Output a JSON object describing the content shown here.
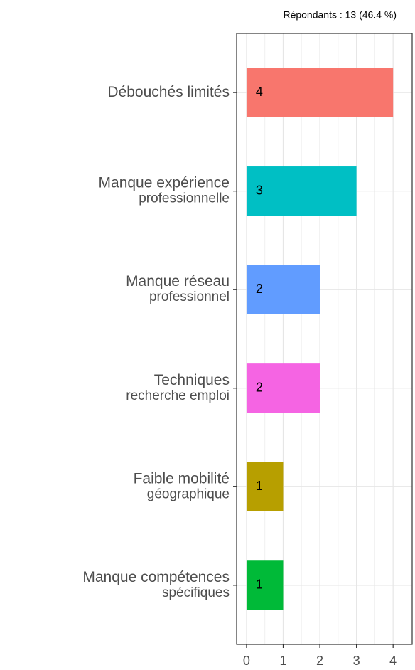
{
  "chart_data": {
    "type": "bar",
    "orientation": "horizontal",
    "subtitle": "Répondants : 13 (46.4 %)",
    "categories": [
      [
        "Débouchés limités"
      ],
      [
        "Manque expérience",
        "professionnelle"
      ],
      [
        "Manque réseau",
        "professionnel"
      ],
      [
        "Techniques",
        "recherche emploi"
      ],
      [
        "Faible mobilité",
        "géographique"
      ],
      [
        "Manque compétences",
        "spécifiques"
      ]
    ],
    "values": [
      4,
      3,
      2,
      2,
      1,
      1
    ],
    "colors": [
      "#F8766D",
      "#00BFC4",
      "#619CFF",
      "#F564E3",
      "#B79F00",
      "#00BA38"
    ],
    "xlim": [
      -0.27,
      4.52
    ],
    "xticks": [
      0,
      1,
      2,
      3,
      4
    ],
    "grid": true
  }
}
